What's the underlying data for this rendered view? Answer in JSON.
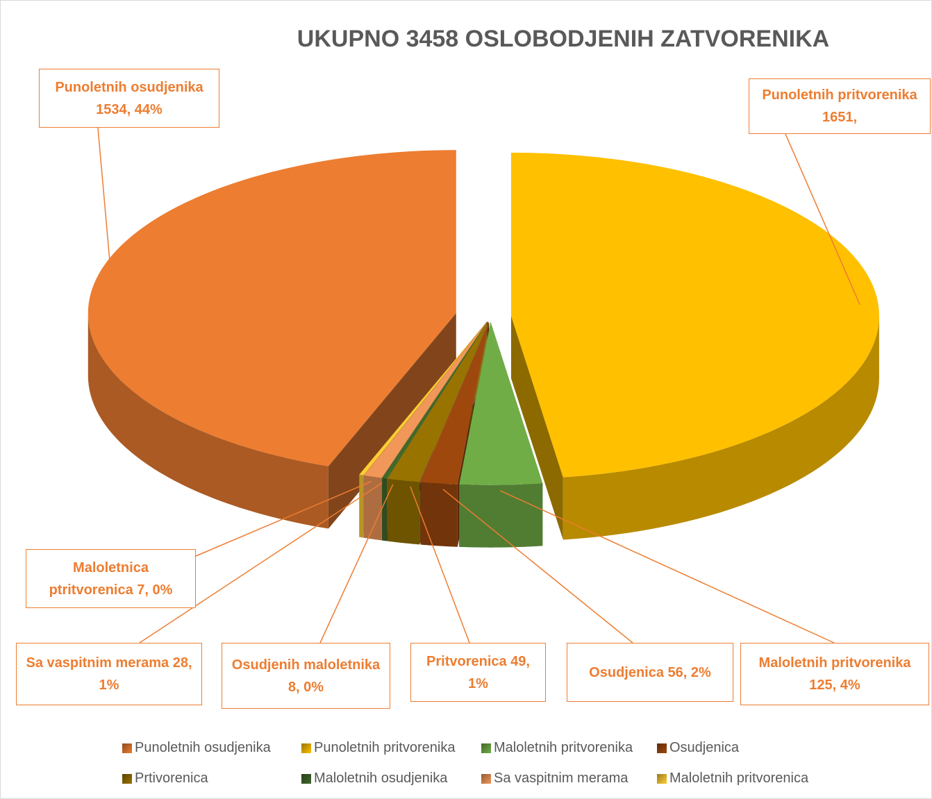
{
  "chart_data": {
    "type": "pie3d",
    "title": "UKUPNO 3458 OSLOBODJENIH ZATVORENIKA",
    "categories": [
      "Punoletnih osudjenika",
      "Punoletnih pritvorenika",
      "Maloletnih pritvorenika",
      "Osudjenica",
      "Prtivorenica",
      "Maloletnih osudjenika",
      "Sa vaspitnim merama",
      "Maloletnih pritvorenica"
    ],
    "values": [
      1534,
      1651,
      125,
      56,
      49,
      8,
      28,
      7
    ],
    "value_labels": [
      "Punoletnih osudjenika 1534, 44%",
      "Punoletnih pritvorenika 1651,",
      "Maloletnih pritvorenika 125, 4%",
      "Osudjenica 56, 2%",
      "Pritvorenica 49, 1%",
      "Osudjenih maloletnika 8, 0%",
      "Sa vaspitnim merama 28, 1%",
      "Maloletnica ptritvorenica 7, 0%"
    ],
    "colors": [
      "#ED7D31",
      "#FFC000",
      "#70AD47",
      "#9E480E",
      "#997300",
      "#43682B",
      "#F1975A",
      "#FFCD33"
    ],
    "legend": "bottom"
  }
}
